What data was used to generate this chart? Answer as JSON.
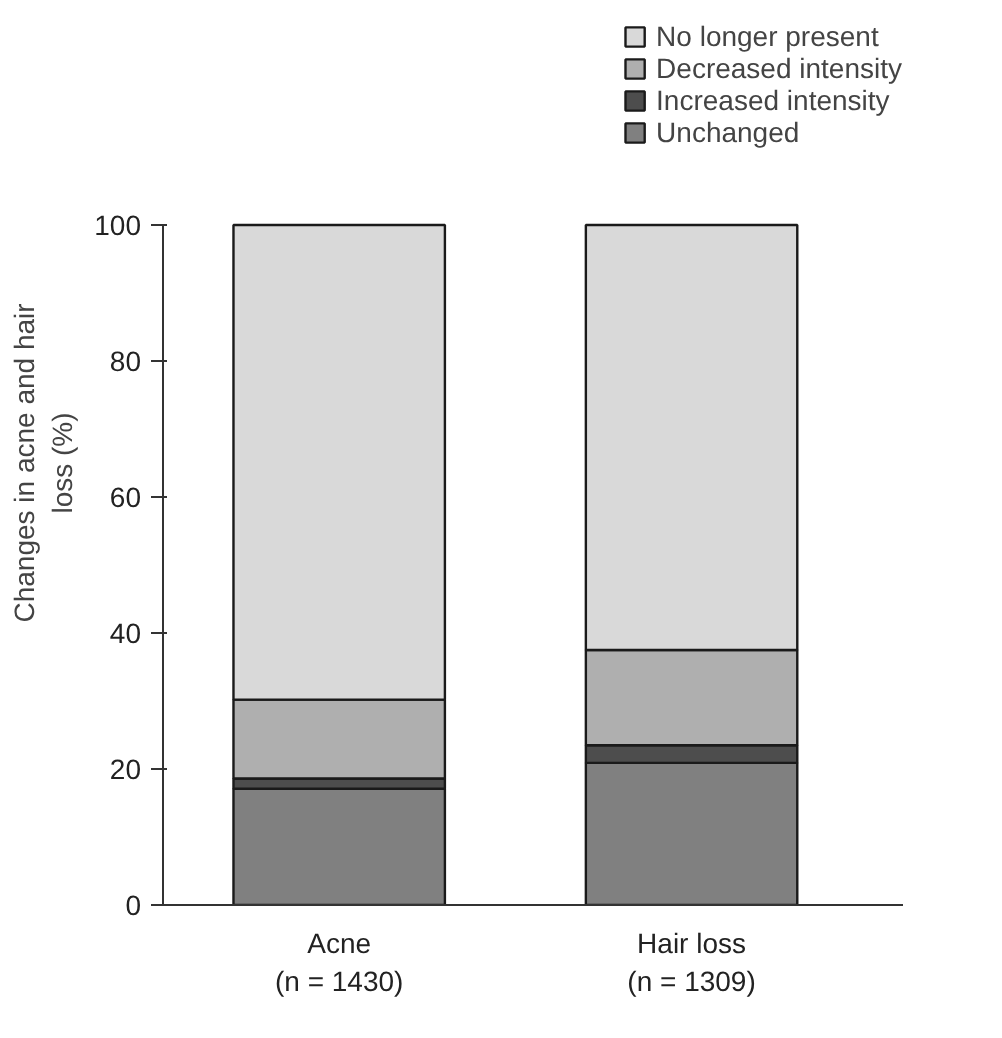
{
  "chart_data": {
    "type": "bar",
    "stacked": true,
    "ylabel": "Changes in acne and hair loss (%)",
    "categories": [
      "Acne\n(n = 1430)",
      "Hair loss\n(n = 1309)"
    ],
    "series": [
      {
        "name": "Unchanged",
        "color": "#808080",
        "values": [
          17.1,
          20.9
        ]
      },
      {
        "name": "Increased intensity",
        "color": "#4d4d4d",
        "values": [
          1.5,
          2.6
        ]
      },
      {
        "name": "Decreased intensity",
        "color": "#afafaf",
        "values": [
          11.6,
          14.0
        ]
      },
      {
        "name": "No longer present",
        "color": "#d9d9d9",
        "values": [
          69.8,
          62.5
        ]
      }
    ],
    "ylim": [
      0,
      100
    ],
    "yticks": [
      0,
      20,
      40,
      60,
      80,
      100
    ],
    "grid": false,
    "legend": "top right"
  }
}
